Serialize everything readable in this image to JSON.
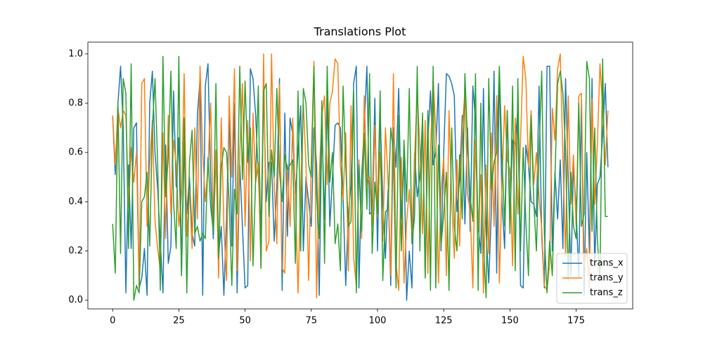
{
  "chart_data": {
    "type": "line",
    "title": "Translations Plot",
    "x": [
      0,
      1,
      2,
      3,
      4,
      5,
      6,
      7,
      8,
      9,
      10,
      11,
      12,
      13,
      14,
      15,
      16,
      17,
      18,
      19,
      20,
      21,
      22,
      23,
      24,
      25,
      26,
      27,
      28,
      29,
      30,
      31,
      32,
      33,
      34,
      35,
      36,
      37,
      38,
      39,
      40,
      41,
      42,
      43,
      44,
      45,
      46,
      47,
      48,
      49,
      50,
      51,
      52,
      53,
      54,
      55,
      56,
      57,
      58,
      59,
      60,
      61,
      62,
      63,
      64,
      65,
      66,
      67,
      68,
      69,
      70,
      71,
      72,
      73,
      74,
      75,
      76,
      77,
      78,
      79,
      80,
      81,
      82,
      83,
      84,
      85,
      86,
      87,
      88,
      89,
      90,
      91,
      92,
      93,
      94,
      95,
      96,
      97,
      98,
      99,
      100,
      101,
      102,
      103,
      104,
      105,
      106,
      107,
      108,
      109,
      110,
      111,
      112,
      113,
      114,
      115,
      116,
      117,
      118,
      119,
      120,
      121,
      122,
      123,
      124,
      125,
      126,
      127,
      128,
      129,
      130,
      131,
      132,
      133,
      134,
      135,
      136,
      137,
      138,
      139,
      140,
      141,
      142,
      143,
      144,
      145,
      146,
      147,
      148,
      149,
      150,
      151,
      152,
      153,
      154,
      155,
      156,
      157,
      158,
      159,
      160,
      161,
      162,
      163,
      164,
      165,
      166,
      167,
      168,
      169,
      170,
      171,
      172,
      173,
      174,
      175,
      176,
      177,
      178,
      179,
      180,
      181,
      182,
      183,
      184,
      185,
      186,
      187
    ],
    "series": [
      {
        "name": "trans_x",
        "color": "#1f77b4",
        "values": [
          0.75,
          0.51,
          0.8,
          0.95,
          0.7,
          0.03,
          0.55,
          0.21,
          0.7,
          0.72,
          0.05,
          0.09,
          0.21,
          0.02,
          0.8,
          0.93,
          0.6,
          0.45,
          0.24,
          0.03,
          0.63,
          0.15,
          0.22,
          0.85,
          0.46,
          0.66,
          0.1,
          0.62,
          0.35,
          0.5,
          0.27,
          0.22,
          0.75,
          0.9,
          0.02,
          0.87,
          0.96,
          0.5,
          0.25,
          0.6,
          0.18,
          0.3,
          0.02,
          0.33,
          0.77,
          0.22,
          0.8,
          0.03,
          0.55,
          0.3,
          0.05,
          0.06,
          0.94,
          0.9,
          0.75,
          0.5,
          0.3,
          0.85,
          0.4,
          0.56,
          0.56,
          0.24,
          0.46,
          0.9,
          0.04,
          0.76,
          0.26,
          0.74,
          0.67,
          0.43,
          0.6,
          0.79,
          0.2,
          0.5,
          0.4,
          0.3,
          0.7,
          0.55,
          0.02,
          0.72,
          0.33,
          0.82,
          0.3,
          0.5,
          0.71,
          0.72,
          0.7,
          0.42,
          0.06,
          0.35,
          0.47,
          0.88,
          0.95,
          0.05,
          0.5,
          0.71,
          0.95,
          0.35,
          0.36,
          0.82,
          0.2,
          0.76,
          0.4,
          0.17,
          0.45,
          0.06,
          0.7,
          0.54,
          0.86,
          0.33,
          0.59,
          0.0,
          0.2,
          0.05,
          0.6,
          0.42,
          0.5,
          0.74,
          0.1,
          0.65,
          0.85,
          0.55,
          0.6,
          0.88,
          0.2,
          0.6,
          0.92,
          0.91,
          0.88,
          0.83,
          0.36,
          0.49,
          0.75,
          0.31,
          0.7,
          0.28,
          0.87,
          0.73,
          0.3,
          0.19,
          0.86,
          0.28,
          0.07,
          0.37,
          0.93,
          0.11,
          0.94,
          0.4,
          0.21,
          0.77,
          0.33,
          0.65,
          0.63,
          0.78,
          0.06,
          0.05,
          0.63,
          0.55,
          0.4,
          0.39,
          0.34,
          0.87,
          0.26,
          0.05,
          0.95,
          0.95,
          0.2,
          0.52,
          0.33,
          0.57,
          0.21,
          0.9,
          0.5,
          0.1,
          0.55,
          0.37,
          0.09,
          0.81,
          0.02,
          0.6,
          0.19,
          0.9,
          0.14,
          0.47,
          0.5,
          0.67,
          0.88,
          0.54
        ]
      },
      {
        "name": "trans_y",
        "color": "#ff7f0e",
        "values": [
          0.75,
          0.55,
          0.78,
          0.7,
          0.77,
          0.75,
          0.38,
          0.62,
          0.48,
          0.6,
          0.05,
          0.88,
          0.9,
          0.3,
          0.55,
          0.73,
          0.32,
          0.21,
          0.12,
          0.68,
          0.25,
          0.75,
          0.35,
          0.65,
          0.55,
          0.3,
          0.43,
          0.92,
          0.26,
          0.45,
          0.21,
          0.7,
          0.33,
          0.95,
          0.6,
          0.4,
          0.54,
          0.8,
          0.3,
          0.61,
          0.09,
          0.74,
          0.3,
          0.08,
          0.83,
          0.5,
          0.94,
          0.12,
          0.6,
          0.88,
          0.3,
          0.73,
          0.16,
          0.76,
          0.48,
          0.56,
          0.13,
          1.0,
          0.2,
          0.24,
          1.0,
          0.47,
          0.23,
          0.88,
          0.13,
          0.11,
          0.55,
          0.3,
          0.74,
          0.42,
          0.03,
          0.45,
          0.8,
          0.55,
          0.08,
          0.57,
          0.97,
          0.01,
          0.5,
          0.75,
          0.83,
          0.47,
          0.8,
          0.85,
          0.98,
          0.96,
          0.55,
          0.41,
          0.68,
          0.12,
          0.79,
          0.17,
          0.06,
          0.57,
          0.25,
          0.83,
          0.47,
          0.5,
          0.3,
          0.71,
          0.34,
          0.6,
          0.24,
          0.7,
          0.48,
          0.1,
          0.92,
          0.15,
          0.04,
          0.58,
          0.07,
          0.32,
          0.45,
          0.27,
          0.58,
          0.85,
          0.62,
          0.27,
          0.73,
          0.11,
          0.6,
          0.9,
          0.69,
          0.07,
          0.44,
          0.58,
          0.1,
          0.77,
          0.41,
          0.17,
          0.57,
          0.22,
          0.7,
          0.84,
          0.43,
          0.36,
          0.05,
          0.65,
          0.29,
          0.51,
          0.03,
          0.55,
          0.19,
          0.68,
          0.3,
          0.83,
          0.07,
          0.47,
          0.79,
          0.57,
          0.53,
          0.14,
          0.74,
          0.35,
          0.65,
          0.99,
          0.9,
          0.54,
          0.77,
          0.47,
          0.6,
          0.42,
          0.29,
          0.06,
          0.04,
          0.15,
          0.78,
          0.65,
          0.94,
          1.0,
          0.58,
          0.18,
          0.83,
          0.39,
          0.59,
          0.3,
          0.83,
          0.84,
          0.14,
          0.21,
          0.05,
          0.82,
          0.39,
          0.63,
          0.96,
          0.78,
          0.55,
          0.77
        ]
      },
      {
        "name": "trans_z",
        "color": "#2ca02c",
        "values": [
          0.31,
          0.11,
          0.8,
          0.19,
          0.9,
          0.84,
          0.21,
          0.96,
          0.0,
          0.06,
          0.03,
          0.4,
          0.42,
          0.52,
          0.22,
          0.7,
          0.9,
          0.55,
          0.04,
          0.99,
          0.42,
          0.58,
          0.93,
          0.4,
          0.21,
          0.99,
          0.1,
          0.74,
          0.03,
          0.56,
          0.69,
          0.27,
          0.3,
          0.24,
          0.27,
          0.25,
          0.58,
          0.38,
          0.28,
          0.88,
          0.17,
          0.54,
          0.62,
          0.6,
          0.4,
          0.06,
          0.45,
          0.35,
          0.95,
          0.49,
          0.89,
          0.56,
          0.7,
          0.14,
          0.5,
          0.87,
          0.13,
          0.85,
          0.88,
          0.34,
          0.61,
          0.5,
          0.86,
          0.52,
          0.4,
          0.59,
          0.53,
          0.55,
          0.57,
          0.15,
          0.85,
          0.2,
          0.86,
          0.8,
          0.55,
          0.5,
          0.95,
          0.43,
          0.25,
          0.81,
          0.15,
          0.95,
          0.48,
          0.6,
          0.23,
          0.31,
          0.12,
          0.87,
          0.55,
          0.3,
          0.32,
          0.85,
          0.03,
          0.55,
          0.28,
          0.68,
          0.37,
          0.92,
          0.19,
          0.48,
          0.35,
          0.85,
          0.08,
          0.36,
          0.37,
          0.7,
          0.6,
          0.05,
          0.75,
          0.2,
          0.65,
          0.4,
          0.86,
          0.23,
          0.34,
          0.95,
          0.2,
          0.76,
          0.09,
          0.77,
          0.04,
          0.95,
          0.05,
          0.63,
          0.22,
          0.35,
          0.52,
          0.04,
          0.7,
          0.3,
          0.2,
          0.59,
          0.33,
          0.92,
          0.65,
          0.42,
          0.32,
          0.92,
          0.04,
          0.8,
          0.22,
          0.01,
          0.9,
          0.45,
          0.56,
          0.6,
          0.95,
          0.59,
          0.3,
          0.77,
          0.27,
          0.87,
          0.12,
          0.9,
          0.2,
          0.62,
          0.32,
          0.1,
          0.75,
          0.4,
          0.2,
          0.6,
          0.93,
          0.27,
          0.03,
          0.24,
          0.1,
          0.5,
          0.88,
          0.93,
          0.84,
          0.61,
          0.08,
          0.52,
          0.3,
          0.25,
          0.8,
          0.3,
          0.35,
          0.97,
          0.9,
          0.28,
          0.7,
          0.25,
          0.08,
          0.98,
          0.34,
          0.34
        ]
      }
    ],
    "xlim": [
      -9.35,
      196.35
    ],
    "xticks": [
      0,
      25,
      50,
      75,
      100,
      125,
      150,
      175
    ],
    "ylim": [
      -0.035,
      1.048
    ],
    "yticks": [
      {
        "value": 0,
        "label": "0.0"
      },
      0.2,
      0.4,
      0.6,
      0.8,
      {
        "value": 1,
        "label": "1.0"
      }
    ],
    "legend": "lower right"
  }
}
